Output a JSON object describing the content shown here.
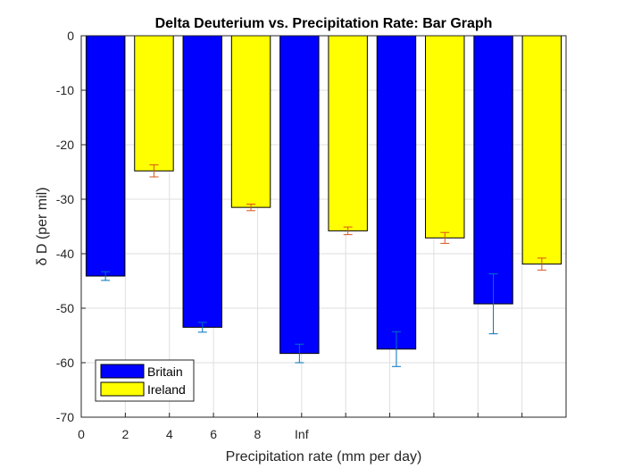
{
  "chart_data": {
    "type": "bar",
    "title": "Delta Deuterium vs. Precipitation Rate: Bar Graph",
    "xlabel": "Precipitation rate (mm per day)",
    "ylabel": "δ D (per mil)",
    "ylim": [
      -70,
      0
    ],
    "yticks": [
      0,
      -10,
      -20,
      -30,
      -40,
      -50,
      -60,
      -70
    ],
    "xtick_labels": [
      "0",
      "2",
      "4",
      "6",
      "8",
      "Inf",
      "",
      "",
      "",
      "",
      ""
    ],
    "grid": true,
    "legend_position": "bottom-left",
    "bar_groups": 5,
    "series": [
      {
        "name": "Britain",
        "color": "#0000ff",
        "error_color": "#0072bd",
        "values": [
          -44.1,
          -53.5,
          -58.3,
          -57.5,
          -49.2
        ],
        "error": [
          0.8,
          0.9,
          1.7,
          3.2,
          5.5
        ]
      },
      {
        "name": "Ireland",
        "color": "#ffff00",
        "error_color": "#d95319",
        "values": [
          -24.8,
          -31.5,
          -35.8,
          -37.1,
          -41.9
        ],
        "error": [
          1.1,
          0.6,
          0.7,
          1.0,
          1.1
        ]
      }
    ]
  }
}
